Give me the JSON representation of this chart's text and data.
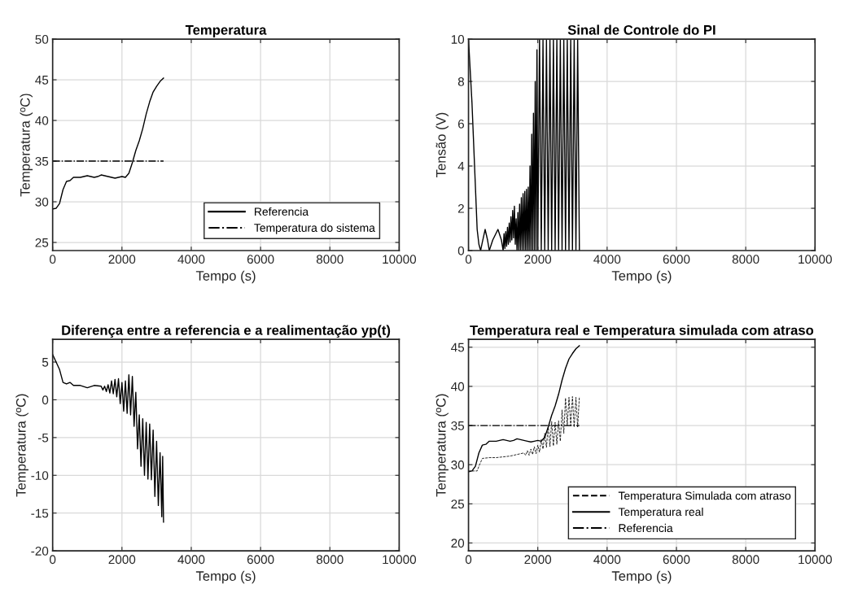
{
  "chart_data": [
    {
      "type": "line",
      "title": "Temperatura",
      "xlabel": "Tempo (s)",
      "ylabel": "Temperatura (ºC)",
      "xlim": [
        0,
        10000
      ],
      "xticks": [
        0,
        2000,
        4000,
        6000,
        8000,
        10000
      ],
      "ylim": [
        24,
        50
      ],
      "yticks": [
        25,
        30,
        35,
        40,
        45,
        50
      ],
      "grid": true,
      "legend": "lower right",
      "series": [
        {
          "name": "Referencia",
          "color": "#000000",
          "line_style": "solid",
          "x": [
            0,
            100,
            200,
            300,
            400,
            500,
            600,
            700,
            800,
            900,
            1000,
            1100,
            1200,
            1300,
            1400,
            1500,
            1600,
            1700,
            1800,
            1900,
            2000,
            2100,
            2200,
            2300,
            2400,
            2500,
            2600,
            2700,
            2800,
            2900,
            3000,
            3100,
            3200
          ],
          "values": [
            29.1,
            29.2,
            29.8,
            31.5,
            32.5,
            32.6,
            33,
            33,
            33,
            33.1,
            33.2,
            33.1,
            33,
            33.1,
            33.3,
            33.2,
            33.1,
            33,
            32.9,
            33,
            33.1,
            33,
            33.5,
            34.8,
            36.3,
            37.5,
            39,
            40.8,
            42.3,
            43.5,
            44.2,
            44.8,
            45.2
          ]
        },
        {
          "name": "Temperatura do sistema",
          "color": "#000000",
          "line_style": "dashdot",
          "x": [
            0,
            3200
          ],
          "values": [
            35,
            35
          ]
        }
      ]
    },
    {
      "type": "line",
      "title": "Sinal de Controle do PI",
      "xlabel": "Tempo (s)",
      "ylabel": "Tensão (V)",
      "xlim": [
        0,
        10000
      ],
      "xticks": [
        0,
        2000,
        4000,
        6000,
        8000,
        10000
      ],
      "ylim": [
        0,
        10
      ],
      "yticks": [
        0,
        2,
        4,
        6,
        8,
        10
      ],
      "grid": true,
      "series": [
        {
          "color": "#000000",
          "line_style": "solid",
          "x": [
            0,
            50,
            100,
            150,
            200,
            250,
            300,
            350,
            400,
            480,
            550,
            600,
            700,
            850,
            950,
            1000,
            1025,
            1050,
            1075,
            1100,
            1125,
            1150,
            1175,
            1200,
            1225,
            1250,
            1275,
            1300,
            1325,
            1350,
            1375,
            1400,
            1425,
            1450,
            1475,
            1500,
            1525,
            1550,
            1575,
            1600,
            1625,
            1650,
            1675,
            1700,
            1725,
            1750,
            1775,
            1800,
            1825,
            1850,
            1875,
            1900,
            1925,
            1950,
            1975,
            2000,
            2050,
            2100,
            2150,
            2200,
            2250,
            2300,
            2350,
            2400,
            2450,
            2500,
            2550,
            2600,
            2650,
            2700,
            2750,
            2800,
            2850,
            2900,
            2950,
            3000,
            3050,
            3100,
            3150,
            3200
          ],
          "values": [
            10,
            8.5,
            7,
            5,
            3,
            1,
            0.3,
            0,
            0.4,
            1,
            0.5,
            0,
            0.5,
            1,
            0.5,
            0,
            0.8,
            0.1,
            0.9,
            0.2,
            1.1,
            0.3,
            1.3,
            0.4,
            1.6,
            0.5,
            1.9,
            0.6,
            2.1,
            0.3,
            1.5,
            0,
            1.8,
            0,
            2.2,
            0,
            2.5,
            0,
            2.7,
            0,
            2.8,
            0,
            2.9,
            0,
            3.0,
            0,
            4,
            0,
            5.5,
            0,
            6.5,
            0,
            8,
            0,
            9.5,
            0,
            10,
            0,
            10,
            0,
            10,
            0,
            10,
            0,
            10,
            0,
            10,
            0,
            10,
            0,
            10,
            0,
            10,
            0,
            10,
            0,
            10,
            0,
            10,
            0
          ]
        }
      ]
    },
    {
      "type": "line",
      "title": "Diferença entre a referencia e a realimentação yp(t)",
      "xlabel": "Tempo (s)",
      "ylabel": "Temperatura (ºC)",
      "xlim": [
        0,
        10000
      ],
      "xticks": [
        0,
        2000,
        4000,
        6000,
        8000,
        10000
      ],
      "ylim": [
        -20,
        8
      ],
      "yticks": [
        -20,
        -15,
        -10,
        -5,
        0,
        5
      ],
      "grid": true,
      "series": [
        {
          "color": "#000000",
          "line_style": "solid",
          "x": [
            0,
            100,
            200,
            300,
            400,
            500,
            600,
            800,
            1000,
            1200,
            1400,
            1450,
            1500,
            1550,
            1600,
            1650,
            1700,
            1750,
            1800,
            1850,
            1900,
            1950,
            2000,
            2050,
            2100,
            2150,
            2200,
            2250,
            2300,
            2350,
            2400,
            2450,
            2500,
            2550,
            2600,
            2650,
            2700,
            2750,
            2800,
            2850,
            2900,
            2950,
            3000,
            3050,
            3100,
            3150,
            3175,
            3200
          ],
          "values": [
            6,
            5,
            4,
            2.3,
            2.1,
            2.3,
            1.9,
            1.9,
            1.6,
            1.9,
            1.8,
            1.3,
            1.8,
            1.1,
            2.0,
            0.9,
            2.5,
            0.8,
            2.7,
            0.4,
            2.8,
            -0.5,
            2.3,
            -1.5,
            2.5,
            -1.8,
            3.3,
            -2.0,
            3.1,
            -3.5,
            1.0,
            -6.5,
            -2.0,
            -8.8,
            -2.5,
            -10.0,
            -3.0,
            -10.5,
            -3.2,
            -10.6,
            -4.0,
            -12.8,
            -5.5,
            -14.0,
            -7.0,
            -15.5,
            -7.5,
            -16.2
          ]
        }
      ]
    },
    {
      "type": "line",
      "title": "Temperatura real e Temperatura simulada com atraso",
      "xlabel": "Tempo (s)",
      "ylabel": "Temperatura (ºC)",
      "xlim": [
        0,
        10000
      ],
      "xticks": [
        0,
        2000,
        4000,
        6000,
        8000,
        10000
      ],
      "ylim": [
        19,
        46
      ],
      "yticks": [
        20,
        25,
        30,
        35,
        40,
        45
      ],
      "grid": true,
      "legend": "lower right",
      "series": [
        {
          "name": "Temperatura Simulada com atraso",
          "color": "#000000",
          "line_style": "dashed",
          "x": [
            0,
            250,
            300,
            400,
            600,
            800,
            1000,
            1200,
            1400,
            1600,
            1650,
            1700,
            1750,
            1800,
            1850,
            1900,
            1950,
            2000,
            2050,
            2100,
            2150,
            2200,
            2250,
            2300,
            2350,
            2400,
            2450,
            2500,
            2550,
            2600,
            2650,
            2700,
            2750,
            2800,
            2850,
            2900,
            2950,
            3000,
            3050,
            3100,
            3150,
            3200
          ],
          "values": [
            29.2,
            29.2,
            29.8,
            30.8,
            30.9,
            30.9,
            31,
            31.1,
            31.3,
            31.5,
            31.2,
            31.8,
            31.2,
            32,
            31.3,
            32.3,
            31.4,
            32.5,
            31.6,
            33.2,
            32,
            34,
            32.2,
            35,
            32.3,
            35.5,
            32.4,
            35.4,
            32.6,
            35.6,
            33,
            37,
            34,
            38.5,
            35,
            38.6,
            35,
            38.7,
            34.8,
            38.6,
            34.8,
            38.7
          ]
        },
        {
          "name": "Temperatura real",
          "color": "#000000",
          "line_style": "solid",
          "x": [
            0,
            100,
            200,
            300,
            400,
            500,
            600,
            700,
            800,
            900,
            1000,
            1100,
            1200,
            1300,
            1400,
            1500,
            1600,
            1700,
            1800,
            1900,
            2000,
            2100,
            2200,
            2300,
            2400,
            2500,
            2600,
            2700,
            2800,
            2900,
            3000,
            3100,
            3200
          ],
          "values": [
            29.1,
            29.2,
            29.8,
            31.5,
            32.5,
            32.6,
            33,
            33,
            33,
            33.1,
            33.2,
            33.1,
            33,
            33.1,
            33.3,
            33.2,
            33.1,
            33,
            32.9,
            33,
            33.1,
            33,
            33.5,
            34.8,
            36.3,
            37.5,
            39,
            40.8,
            42.3,
            43.5,
            44.2,
            44.8,
            45.2
          ]
        },
        {
          "name": "Referencia",
          "color": "#000000",
          "line_style": "dashdot",
          "x": [
            0,
            3200
          ],
          "values": [
            35,
            35
          ]
        }
      ]
    }
  ]
}
